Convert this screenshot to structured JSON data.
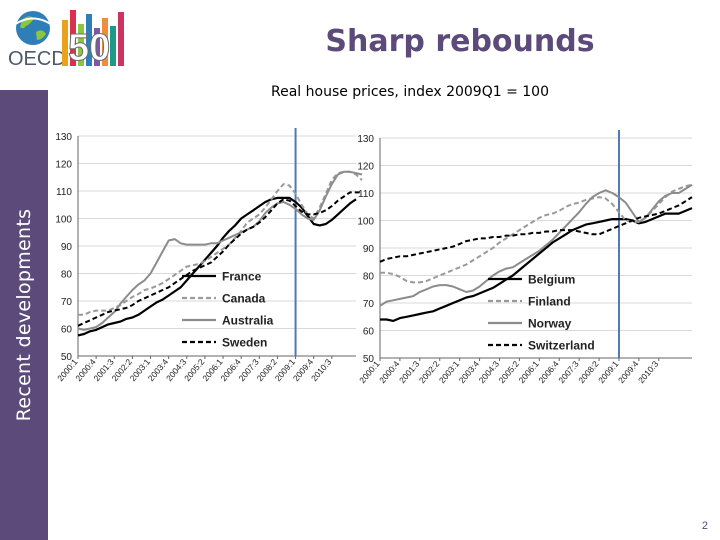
{
  "slide": {
    "title": "Sharp rebounds",
    "subtitle": "Real house prices, index 2009Q1 = 100",
    "sidebar_label": "Recent developments",
    "page_number": "2",
    "logo_text": "OECD",
    "logo_number": "50"
  },
  "colors": {
    "brand_purple": "#5b4a7a",
    "marker_line": "#4f7ab3"
  },
  "chart_data": [
    {
      "type": "line",
      "ylim": [
        50,
        130
      ],
      "yticks": [
        50,
        60,
        70,
        80,
        90,
        100,
        110,
        120,
        130
      ],
      "x_tick_labels": [
        "2000:1",
        "2000:4",
        "2001:3",
        "2002:2",
        "2003:1",
        "2003:4",
        "2004:3",
        "2005:2",
        "2006:1",
        "2006:4",
        "2007:3",
        "2008:2",
        "2009:1",
        "2009:4",
        "2010:3"
      ],
      "x_tick_start": 0,
      "x_tick_step": 3,
      "vline_quarter": 36,
      "grid": true,
      "legend_position": "bottom-center",
      "series": [
        {
          "name": "France",
          "color": "#000000",
          "dash": "solid",
          "width": 2.2,
          "values": [
            57.5,
            58,
            59,
            59.5,
            60.5,
            61.5,
            62,
            62.5,
            63.5,
            64,
            65,
            66.5,
            68,
            69.5,
            70.5,
            72,
            73.5,
            75,
            77.5,
            80,
            82.5,
            85,
            87.5,
            90,
            93,
            95.5,
            97.5,
            100,
            101.5,
            103,
            104.5,
            106,
            107,
            107.5,
            107.5,
            107.5,
            106,
            104,
            101,
            98,
            97.5,
            98,
            99.5,
            101.5,
            103.5,
            105.5,
            107
          ]
        },
        {
          "name": "Canada",
          "color": "#999999",
          "dash": "5,3",
          "width": 2,
          "values": [
            65,
            65,
            66,
            66.5,
            66.5,
            66.5,
            67.5,
            68.5,
            70,
            71.5,
            72.5,
            74,
            74.5,
            75.5,
            76.5,
            78,
            79.5,
            81,
            82.5,
            83,
            83.5,
            84.5,
            86,
            87.5,
            89,
            90.5,
            93,
            95.5,
            98.5,
            100,
            101.5,
            104,
            107,
            110,
            112.5,
            112,
            109,
            105,
            101.5,
            100,
            104,
            109,
            114,
            116.5,
            117,
            117,
            116,
            114
          ]
        },
        {
          "name": "Australia",
          "color": "#8c8c8c",
          "dash": "solid",
          "width": 2,
          "values": [
            60,
            59.5,
            60,
            60.5,
            62,
            64,
            66,
            69,
            71.5,
            74,
            76,
            77.5,
            80,
            84,
            88,
            92,
            92.5,
            91,
            90.5,
            90.5,
            90.5,
            90.5,
            91,
            91,
            92,
            93,
            94,
            95,
            96,
            97,
            99,
            102,
            104,
            105.5,
            106,
            105,
            103.5,
            101.5,
            100,
            99.5,
            103,
            108,
            112.5,
            116,
            117,
            117,
            116.5,
            116
          ]
        },
        {
          "name": "Sweden",
          "color": "#000000",
          "dash": "5,3",
          "width": 2,
          "values": [
            61,
            62,
            63,
            64,
            65,
            66,
            66.5,
            67,
            67.5,
            68.5,
            70,
            71,
            72,
            73,
            74,
            75,
            76.5,
            78,
            79.5,
            81,
            82,
            83,
            84,
            86,
            88,
            90.5,
            92.5,
            94.5,
            96,
            97,
            98.5,
            100.5,
            103,
            105.5,
            107,
            106.5,
            104.5,
            102.5,
            101.5,
            101.5,
            102,
            103,
            104.5,
            106.5,
            108,
            109.5,
            109.5,
            109.5
          ]
        }
      ]
    },
    {
      "type": "line",
      "ylim": [
        50,
        130
      ],
      "yticks": [
        50,
        60,
        70,
        80,
        90,
        100,
        110,
        120,
        130
      ],
      "x_tick_labels": [
        "2000:1",
        "2000:4",
        "2001:3",
        "2002:2",
        "2003:1",
        "2003:4",
        "2004:3",
        "2005:2",
        "2006:1",
        "2006:4",
        "2007:3",
        "2008:2",
        "2009:1",
        "2009:4",
        "2010:3"
      ],
      "x_tick_start": 0,
      "x_tick_step": 3,
      "vline_quarter": 36,
      "grid": true,
      "legend_position": "bottom-center",
      "series": [
        {
          "name": "Belgium",
          "color": "#000000",
          "dash": "solid",
          "width": 2.2,
          "values": [
            64,
            64,
            63.5,
            64.5,
            65,
            65.5,
            66,
            66.5,
            67,
            68,
            69,
            70,
            71,
            72,
            72.5,
            73.5,
            74.5,
            75.5,
            77,
            78.5,
            80,
            82,
            84,
            86,
            88,
            90,
            92,
            93.5,
            95,
            96.5,
            97.5,
            98.5,
            99,
            99.5,
            100,
            100.5,
            100.5,
            100.5,
            100,
            99,
            99.5,
            100.5,
            101.5,
            102.5,
            102.5,
            102.5,
            103.5,
            104.5
          ]
        },
        {
          "name": "Finland",
          "color": "#999999",
          "dash": "5,3",
          "width": 2,
          "values": [
            81,
            81,
            80.5,
            79.5,
            78,
            77.5,
            77.5,
            78,
            79,
            80,
            81,
            82,
            83,
            84,
            85.5,
            87,
            88.5,
            90,
            92,
            93.5,
            95,
            96.5,
            98,
            99.5,
            101,
            102,
            102.5,
            103.5,
            105,
            106,
            106.5,
            107.5,
            108,
            108.5,
            108,
            106,
            103,
            100,
            99.5,
            99.5,
            101,
            103.5,
            106,
            108.5,
            110.5,
            111.5,
            112.5,
            113
          ]
        },
        {
          "name": "Norway",
          "color": "#8c8c8c",
          "dash": "solid",
          "width": 2,
          "values": [
            69,
            70.5,
            71,
            71.5,
            72,
            72.5,
            74,
            75,
            76,
            76.5,
            76.5,
            76,
            75,
            74,
            74.5,
            76,
            78,
            80,
            81.5,
            82.5,
            83,
            84.5,
            86,
            87.5,
            89,
            91,
            93,
            95.5,
            98,
            100.5,
            103,
            106,
            108.5,
            110,
            111,
            110,
            108.5,
            106.5,
            103,
            99.5,
            101,
            104,
            107,
            109,
            110,
            110,
            111.5,
            113
          ]
        },
        {
          "name": "Switzerland",
          "color": "#000000",
          "dash": "5,3",
          "width": 2,
          "values": [
            85,
            86,
            86.5,
            87,
            87,
            87.5,
            88,
            88.5,
            89,
            89.5,
            90,
            90.5,
            91.5,
            92.5,
            93,
            93.5,
            93.5,
            94,
            94,
            94.5,
            94.5,
            95,
            95,
            95.5,
            95.5,
            96,
            96,
            96.5,
            96.5,
            96.5,
            96,
            95.5,
            95,
            95,
            96,
            97,
            98,
            99,
            100,
            101,
            101.5,
            102,
            102.5,
            103.5,
            104.5,
            105.5,
            107,
            108.5
          ]
        }
      ]
    }
  ]
}
